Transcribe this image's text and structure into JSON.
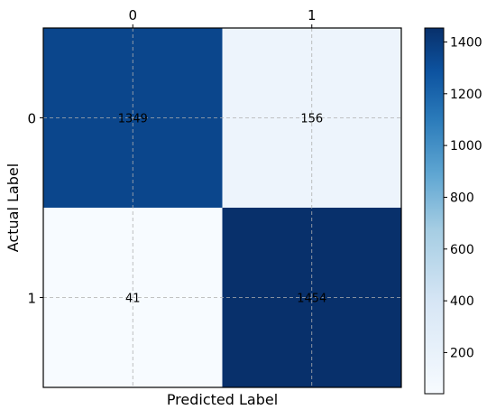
{
  "chart_data": {
    "type": "heatmap",
    "title": "",
    "xlabel": "Predicted Label",
    "ylabel": "Actual Label",
    "x_categories": [
      "0",
      "1"
    ],
    "y_categories": [
      "0",
      "1"
    ],
    "values": [
      [
        1349,
        156
      ],
      [
        41,
        1454
      ]
    ],
    "value_labels": [
      [
        "1349",
        "156"
      ],
      [
        "41",
        "1454"
      ]
    ],
    "x_tick_position": "top",
    "grid": true,
    "colormap": "Blues",
    "colorbar": {
      "range": [
        41,
        1454
      ],
      "ticks": [
        200,
        400,
        600,
        800,
        1000,
        1200,
        1400
      ],
      "tick_labels": [
        "200",
        "400",
        "600",
        "800",
        "1000",
        "1200",
        "1400"
      ],
      "placement": "right"
    }
  }
}
